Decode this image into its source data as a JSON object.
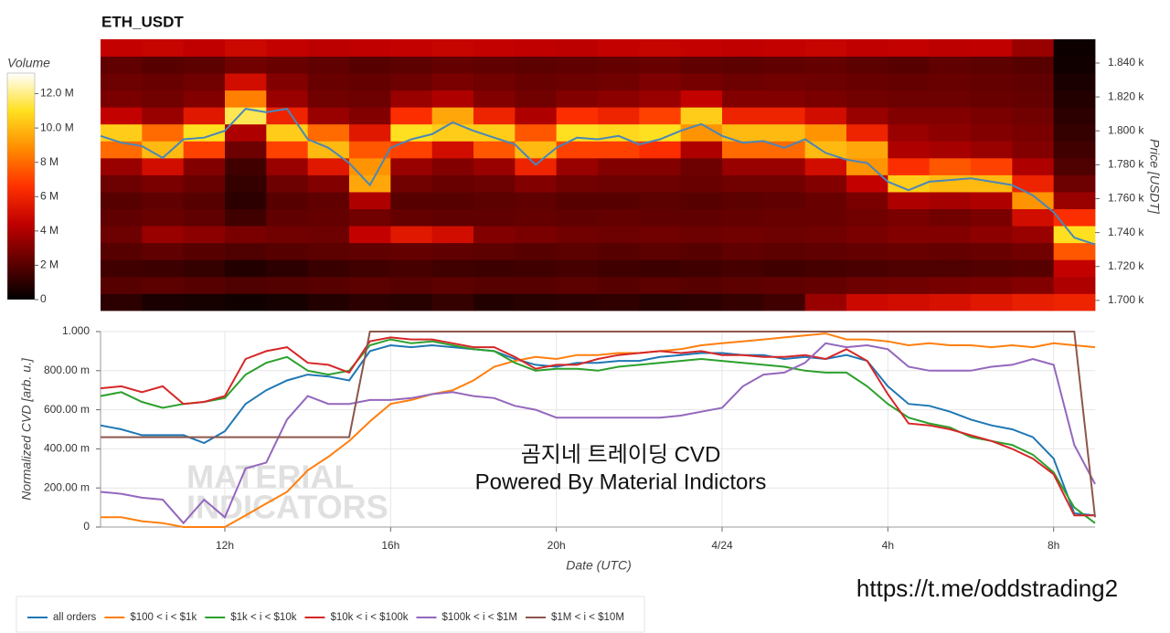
{
  "chart_data": [
    {
      "type": "heatmap",
      "title": "ETH_USDT",
      "y_label": "Price [USDT]",
      "colorbar_label": "Volume",
      "xlim": [
        "4/23 09:00",
        "4/24 09:00"
      ],
      "ylim": [
        1694,
        1854
      ],
      "yticks": [
        {
          "value": 1700,
          "label": "1.700 k"
        },
        {
          "value": 1720,
          "label": "1.720 k"
        },
        {
          "value": 1740,
          "label": "1.740 k"
        },
        {
          "value": 1760,
          "label": "1.760 k"
        },
        {
          "value": 1780,
          "label": "1.780 k"
        },
        {
          "value": 1800,
          "label": "1.800 k"
        },
        {
          "value": 1820,
          "label": "1.820 k"
        },
        {
          "value": 1840,
          "label": "1.840 k"
        }
      ],
      "zlim": [
        0,
        13.2
      ],
      "zticks": [
        0,
        {
          "value": 2,
          "label": "2 M"
        },
        {
          "value": 4,
          "label": "4 M"
        },
        {
          "value": 6,
          "label": "6 M"
        },
        {
          "value": 8,
          "label": "8 M"
        },
        {
          "value": 10,
          "label": "10.0 M"
        },
        {
          "value": 12,
          "label": "12.0 M"
        }
      ],
      "colorscale": [
        "#000000",
        "#600000",
        "#c00000",
        "#ff3000",
        "#ff8c00",
        "#ffe020",
        "#ffffff"
      ],
      "x_bins": [
        "4/23 09:00",
        "4/23 10:00",
        "4/23 11:00",
        "4/23 12:00",
        "4/23 13:00",
        "4/23 14:00",
        "4/23 15:00",
        "4/23 16:00",
        "4/23 17:00",
        "4/23 18:00",
        "4/23 19:00",
        "4/23 20:00",
        "4/23 21:00",
        "4/23 22:00",
        "4/23 23:00",
        "4/24 00:00",
        "4/24 01:00",
        "4/24 02:00",
        "4/24 03:00",
        "4/24 04:00",
        "4/24 05:00",
        "4/24 06:00",
        "4/24 07:00",
        "4/24 08:00",
        "4/24 09:00"
      ],
      "y_bins": [
        1694,
        1704,
        1714,
        1724,
        1734,
        1744,
        1754,
        1764,
        1774,
        1784,
        1794,
        1804,
        1814,
        1824,
        1834,
        1844,
        1854
      ],
      "z": [
        [
          1.0,
          0.6,
          0.5,
          0.4,
          0.5,
          0.8,
          1.0,
          0.9,
          1.2,
          0.8,
          0.9,
          1.0,
          1.1,
          0.9,
          1.0,
          1.2,
          1.5,
          3.5,
          4.8,
          5.0,
          5.2,
          5.5,
          5.8,
          6.0
        ],
        [
          2.0,
          2.1,
          2.0,
          1.8,
          1.9,
          2.0,
          2.1,
          2.0,
          2.1,
          2.0,
          2.0,
          2.1,
          2.0,
          2.1,
          2.0,
          2.1,
          2.2,
          2.3,
          2.5,
          2.6,
          2.7,
          2.8,
          3.0,
          4.0
        ],
        [
          1.5,
          1.4,
          1.2,
          0.8,
          1.0,
          1.3,
          1.5,
          1.6,
          1.5,
          1.4,
          1.5,
          1.6,
          1.5,
          1.4,
          1.5,
          1.6,
          1.5,
          1.6,
          1.7,
          1.8,
          1.8,
          1.9,
          2.0,
          4.5
        ],
        [
          2.0,
          2.2,
          2.0,
          1.8,
          2.0,
          2.1,
          2.2,
          2.3,
          2.2,
          2.1,
          2.0,
          2.1,
          2.0,
          2.1,
          2.0,
          2.2,
          2.1,
          2.2,
          2.3,
          2.4,
          2.3,
          2.4,
          2.6,
          7.5
        ],
        [
          2.5,
          3.5,
          3.2,
          2.8,
          2.6,
          2.5,
          4.5,
          5.5,
          5.0,
          3.0,
          2.8,
          2.6,
          2.5,
          2.6,
          2.5,
          2.6,
          2.5,
          2.6,
          2.8,
          3.0,
          3.0,
          3.2,
          3.5,
          11.0
        ],
        [
          2.2,
          2.4,
          2.2,
          1.5,
          2.2,
          2.3,
          2.6,
          2.3,
          2.2,
          2.2,
          2.3,
          2.2,
          2.3,
          2.2,
          2.2,
          2.3,
          2.4,
          2.4,
          2.6,
          2.8,
          2.6,
          2.8,
          5.0,
          6.5
        ],
        [
          2.0,
          2.2,
          2.0,
          1.0,
          2.0,
          2.2,
          4.0,
          2.0,
          2.0,
          2.1,
          2.2,
          2.0,
          2.0,
          2.1,
          2.0,
          2.1,
          2.2,
          2.4,
          2.8,
          4.0,
          3.8,
          4.0,
          9.0,
          3.5
        ],
        [
          2.5,
          2.8,
          2.4,
          1.2,
          2.5,
          3.0,
          9.5,
          2.6,
          2.4,
          2.5,
          3.0,
          2.6,
          2.5,
          2.5,
          2.4,
          2.6,
          2.6,
          3.0,
          4.5,
          10.5,
          10.0,
          10.0,
          6.0,
          2.5
        ],
        [
          3.5,
          5.0,
          3.0,
          1.5,
          3.5,
          5.5,
          9.0,
          3.5,
          3.0,
          3.5,
          6.0,
          3.5,
          3.0,
          3.0,
          2.5,
          3.5,
          3.5,
          5.0,
          9.0,
          6.5,
          7.5,
          7.0,
          4.0,
          1.8
        ],
        [
          8.0,
          10.0,
          7.0,
          2.5,
          7.0,
          10.0,
          7.5,
          7.0,
          5.0,
          7.5,
          10.0,
          7.0,
          7.0,
          6.5,
          4.0,
          8.0,
          8.0,
          10.0,
          9.5,
          4.0,
          3.8,
          3.5,
          3.0,
          1.5
        ],
        [
          10.5,
          8.0,
          11.0,
          4.0,
          10.5,
          8.0,
          5.5,
          11.0,
          10.5,
          10.5,
          7.5,
          11.0,
          10.8,
          11.0,
          9.0,
          10.0,
          10.0,
          9.0,
          6.0,
          3.5,
          3.2,
          3.0,
          2.8,
          1.2
        ],
        [
          4.5,
          3.5,
          5.5,
          11.5,
          6.0,
          3.5,
          3.0,
          6.5,
          9.5,
          6.0,
          4.0,
          6.5,
          6.0,
          7.0,
          10.5,
          6.0,
          6.0,
          5.0,
          3.5,
          3.0,
          3.0,
          2.8,
          2.6,
          1.0
        ],
        [
          2.8,
          2.6,
          3.0,
          8.5,
          3.5,
          2.6,
          2.5,
          3.5,
          4.0,
          3.0,
          2.6,
          3.0,
          3.2,
          3.5,
          4.5,
          3.0,
          3.0,
          2.8,
          2.6,
          2.5,
          2.5,
          2.4,
          2.3,
          0.8
        ],
        [
          2.5,
          2.4,
          2.6,
          5.0,
          3.0,
          2.4,
          2.3,
          2.5,
          2.8,
          2.6,
          2.4,
          2.5,
          2.6,
          2.9,
          2.7,
          2.5,
          2.6,
          2.5,
          2.4,
          2.3,
          2.4,
          2.3,
          2.2,
          0.6
        ],
        [
          2.2,
          2.0,
          2.1,
          2.6,
          2.4,
          2.2,
          2.0,
          2.1,
          2.3,
          2.2,
          2.1,
          2.2,
          2.3,
          2.4,
          2.2,
          2.1,
          2.2,
          2.3,
          2.1,
          2.0,
          2.2,
          2.1,
          2.0,
          0.4
        ],
        [
          4.5,
          4.6,
          4.4,
          4.8,
          4.5,
          4.3,
          4.4,
          4.5,
          4.6,
          4.5,
          4.4,
          4.3,
          4.5,
          4.6,
          4.5,
          4.4,
          4.5,
          4.6,
          4.4,
          4.5,
          4.3,
          4.4,
          3.5,
          0.3
        ]
      ],
      "line": {
        "color": "#4a86b8",
        "x": [
          "4/23 09:00",
          "4/23 09:30",
          "4/23 10:00",
          "4/23 10:30",
          "4/23 11:00",
          "4/23 11:30",
          "4/23 12:00",
          "4/23 12:30",
          "4/23 13:00",
          "4/23 13:30",
          "4/23 14:00",
          "4/23 14:30",
          "4/23 15:00",
          "4/23 15:30",
          "4/23 16:00",
          "4/23 16:30",
          "4/23 17:00",
          "4/23 17:30",
          "4/23 18:00",
          "4/23 18:30",
          "4/23 19:00",
          "4/23 19:30",
          "4/23 20:00",
          "4/23 20:30",
          "4/23 21:00",
          "4/23 21:30",
          "4/23 22:00",
          "4/23 22:30",
          "4/23 23:00",
          "4/23 23:30",
          "4/24 00:00",
          "4/24 00:30",
          "4/24 01:00",
          "4/24 01:30",
          "4/24 02:00",
          "4/24 02:30",
          "4/24 03:00",
          "4/24 03:30",
          "4/24 04:00",
          "4/24 04:30",
          "4/24 05:00",
          "4/24 05:30",
          "4/24 06:00",
          "4/24 06:30",
          "4/24 07:00",
          "4/24 07:30",
          "4/24 08:00",
          "4/24 08:30",
          "4/24 09:00"
        ],
        "values": [
          1797,
          1793,
          1791,
          1784,
          1795,
          1796,
          1800,
          1813,
          1811,
          1813,
          1795,
          1790,
          1781,
          1768,
          1790,
          1795,
          1798,
          1805,
          1800,
          1796,
          1792,
          1780,
          1790,
          1796,
          1795,
          1797,
          1792,
          1795,
          1800,
          1804,
          1797,
          1793,
          1794,
          1790,
          1795,
          1787,
          1783,
          1781,
          1770,
          1765,
          1770,
          1771,
          1772,
          1770,
          1768,
          1762,
          1752,
          1737,
          1733
        ]
      }
    },
    {
      "type": "line",
      "y_label": "Normalized CVD [arb. u.]",
      "x_label": "Date (UTC)",
      "xlim": [
        "4/23 09:00",
        "4/24 09:00"
      ],
      "xticks": [
        {
          "value": "4/23 12:00",
          "label": "12h"
        },
        {
          "value": "4/23 16:00",
          "label": "16h"
        },
        {
          "value": "4/23 20:00",
          "label": "20h"
        },
        {
          "value": "4/24 00:00",
          "label": "4/24"
        },
        {
          "value": "4/24 04:00",
          "label": "4h"
        },
        {
          "value": "4/24 08:00",
          "label": "8h"
        }
      ],
      "ylim": [
        0,
        1
      ],
      "yticks": [
        0,
        {
          "value": 0.2,
          "label": "200.00 m"
        },
        {
          "value": 0.4,
          "label": "400.00 m"
        },
        {
          "value": 0.6,
          "label": "600.00 m"
        },
        {
          "value": 0.8,
          "label": "800.00 m"
        },
        {
          "value": 1,
          "label": "1.000"
        }
      ],
      "grid": true,
      "legend": "bottom-left",
      "x": [
        "4/23 09:00",
        "4/23 09:30",
        "4/23 10:00",
        "4/23 10:30",
        "4/23 11:00",
        "4/23 11:30",
        "4/23 12:00",
        "4/23 12:30",
        "4/23 13:00",
        "4/23 13:30",
        "4/23 14:00",
        "4/23 14:30",
        "4/23 15:00",
        "4/23 15:30",
        "4/23 16:00",
        "4/23 16:30",
        "4/23 17:00",
        "4/23 17:30",
        "4/23 18:00",
        "4/23 18:30",
        "4/23 19:00",
        "4/23 19:30",
        "4/23 20:00",
        "4/23 20:30",
        "4/23 21:00",
        "4/23 21:30",
        "4/23 22:00",
        "4/23 22:30",
        "4/23 23:00",
        "4/23 23:30",
        "4/24 00:00",
        "4/24 00:30",
        "4/24 01:00",
        "4/24 01:30",
        "4/24 02:00",
        "4/24 02:30",
        "4/24 03:00",
        "4/24 03:30",
        "4/24 04:00",
        "4/24 04:30",
        "4/24 05:00",
        "4/24 05:30",
        "4/24 06:00",
        "4/24 06:30",
        "4/24 07:00",
        "4/24 07:30",
        "4/24 08:00",
        "4/24 08:30",
        "4/24 09:00"
      ],
      "series": [
        {
          "name": "all orders",
          "color": "#1f77b4",
          "values": [
            0.52,
            0.5,
            0.47,
            0.47,
            0.47,
            0.43,
            0.49,
            0.63,
            0.7,
            0.75,
            0.78,
            0.77,
            0.75,
            0.9,
            0.93,
            0.92,
            0.93,
            0.92,
            0.91,
            0.9,
            0.86,
            0.83,
            0.82,
            0.84,
            0.84,
            0.85,
            0.85,
            0.87,
            0.88,
            0.89,
            0.89,
            0.88,
            0.88,
            0.86,
            0.87,
            0.86,
            0.88,
            0.85,
            0.72,
            0.63,
            0.62,
            0.59,
            0.55,
            0.52,
            0.5,
            0.46,
            0.35,
            0.07,
            0.06
          ]
        },
        {
          "name": "$100 < i < $1k",
          "color": "#ff7f0e",
          "values": [
            0.05,
            0.05,
            0.03,
            0.02,
            0,
            0,
            0,
            0.06,
            0.12,
            0.18,
            0.29,
            0.36,
            0.44,
            0.54,
            0.63,
            0.65,
            0.68,
            0.7,
            0.75,
            0.82,
            0.85,
            0.87,
            0.86,
            0.88,
            0.88,
            0.89,
            0.89,
            0.9,
            0.91,
            0.93,
            0.94,
            0.95,
            0.96,
            0.97,
            0.98,
            0.99,
            0.96,
            0.96,
            0.95,
            0.93,
            0.94,
            0.93,
            0.93,
            0.92,
            0.93,
            0.92,
            0.94,
            0.93,
            0.92
          ]
        },
        {
          "name": "$1k < i < $10k",
          "color": "#2ca02c",
          "values": [
            0.67,
            0.69,
            0.64,
            0.61,
            0.63,
            0.64,
            0.66,
            0.78,
            0.84,
            0.87,
            0.8,
            0.78,
            0.8,
            0.93,
            0.96,
            0.94,
            0.95,
            0.93,
            0.91,
            0.9,
            0.84,
            0.8,
            0.81,
            0.81,
            0.8,
            0.82,
            0.83,
            0.84,
            0.85,
            0.86,
            0.85,
            0.84,
            0.83,
            0.82,
            0.8,
            0.79,
            0.79,
            0.72,
            0.63,
            0.56,
            0.53,
            0.51,
            0.46,
            0.44,
            0.42,
            0.37,
            0.28,
            0.1,
            0.02
          ]
        },
        {
          "name": "$10k < i < $100k",
          "color": "#d62728",
          "values": [
            0.71,
            0.72,
            0.69,
            0.72,
            0.63,
            0.64,
            0.67,
            0.86,
            0.9,
            0.92,
            0.84,
            0.83,
            0.79,
            0.95,
            0.97,
            0.96,
            0.96,
            0.94,
            0.92,
            0.92,
            0.87,
            0.81,
            0.83,
            0.83,
            0.86,
            0.88,
            0.89,
            0.9,
            0.89,
            0.9,
            0.88,
            0.88,
            0.87,
            0.87,
            0.88,
            0.86,
            0.91,
            0.85,
            0.68,
            0.53,
            0.52,
            0.5,
            0.47,
            0.44,
            0.4,
            0.35,
            0.27,
            0.06,
            0.06
          ]
        },
        {
          "name": "$100k < i < $1M",
          "color": "#9467bd",
          "values": [
            0.18,
            0.17,
            0.15,
            0.14,
            0.02,
            0.14,
            0.05,
            0.3,
            0.33,
            0.55,
            0.67,
            0.63,
            0.63,
            0.65,
            0.65,
            0.66,
            0.68,
            0.69,
            0.67,
            0.66,
            0.62,
            0.6,
            0.56,
            0.56,
            0.56,
            0.56,
            0.56,
            0.56,
            0.57,
            0.59,
            0.61,
            0.72,
            0.78,
            0.79,
            0.84,
            0.94,
            0.92,
            0.93,
            0.91,
            0.82,
            0.8,
            0.8,
            0.8,
            0.82,
            0.83,
            0.86,
            0.83,
            0.42,
            0.22
          ]
        },
        {
          "name": "$1M < i < $10M",
          "color": "#8c564b",
          "values": [
            0.46,
            0.46,
            0.46,
            0.46,
            0.46,
            0.46,
            0.46,
            0.46,
            0.46,
            0.46,
            0.46,
            0.46,
            0.46,
            1,
            1,
            1,
            1,
            1,
            1,
            1,
            1,
            1,
            1,
            1,
            1,
            1,
            1,
            1,
            1,
            1,
            1,
            1,
            1,
            1,
            1,
            1,
            1,
            1,
            1,
            1,
            1,
            1,
            1,
            1,
            1,
            1,
            1,
            1,
            0.05
          ]
        }
      ],
      "annotations": [
        "곰지네 트레이딩 CVD",
        "Powered By Material Indictors"
      ],
      "watermark": [
        "MATERIAL",
        "INDICATORS"
      ]
    }
  ],
  "footer_link": "https://t.me/oddstrading2"
}
